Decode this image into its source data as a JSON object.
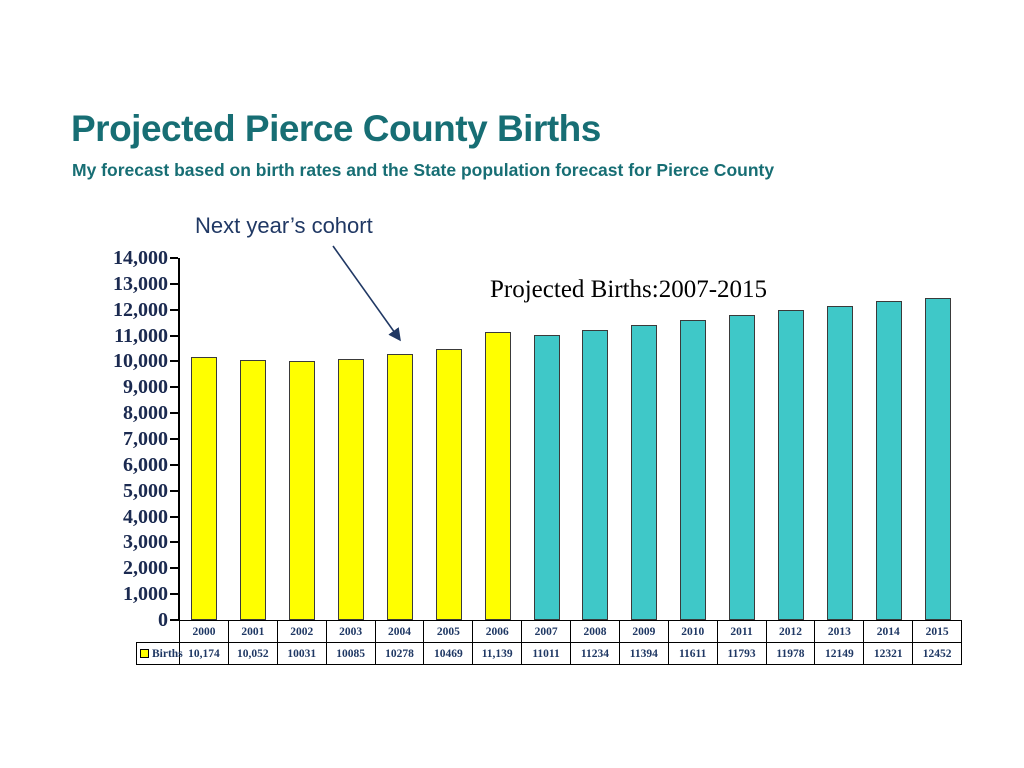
{
  "slide": {
    "title": "Projected Pierce County Births",
    "subtitle": "My forecast based on birth rates and the State population forecast for Pierce County",
    "annotation": "Next year’s cohort",
    "chart_title": "Projected Births:2007-2015",
    "legend_label": "Births"
  },
  "colors": {
    "title_text": "#176e74",
    "annotation_text": "#203864",
    "actual_bar": "#ffff00",
    "projected_bar": "#3fc8c8",
    "bar_border": "#3a3a3a",
    "axis_text": "#1b2a50",
    "table_text": "#1f3864"
  },
  "chart_data": {
    "type": "bar",
    "title": "Projected Births:2007-2015",
    "categories": [
      "2000",
      "2001",
      "2002",
      "2003",
      "2004",
      "2005",
      "2006",
      "2007",
      "2008",
      "2009",
      "2010",
      "2011",
      "2012",
      "2013",
      "2014",
      "2015"
    ],
    "values": [
      10174,
      10052,
      10031,
      10085,
      10278,
      10469,
      11139,
      11011,
      11234,
      11394,
      11611,
      11793,
      11978,
      12149,
      12321,
      12452
    ],
    "value_labels": [
      "10,174",
      "10,052",
      "10031",
      "10085",
      "10278",
      "10469",
      "11,139",
      "11011",
      "11234",
      "11394",
      "11611",
      "11793",
      "11978",
      "12149",
      "12321",
      "12452"
    ],
    "actual_count": 7,
    "actual_series_years": "2000-2006",
    "projected_series_years": "2007-2015",
    "ylim": [
      0,
      14000
    ],
    "ytick_step": 1000,
    "ytick_labels": [
      "14,000",
      "13,000",
      "12,000",
      "11,000",
      "10,000",
      "9,000",
      "8,000",
      "7,000",
      "6,000",
      "5,000",
      "4,000",
      "3,000",
      "2,000",
      "1,000",
      "0"
    ],
    "legend": {
      "label": "Births",
      "position": "bottom-left"
    },
    "grid": false,
    "xlabel": "",
    "ylabel": ""
  }
}
